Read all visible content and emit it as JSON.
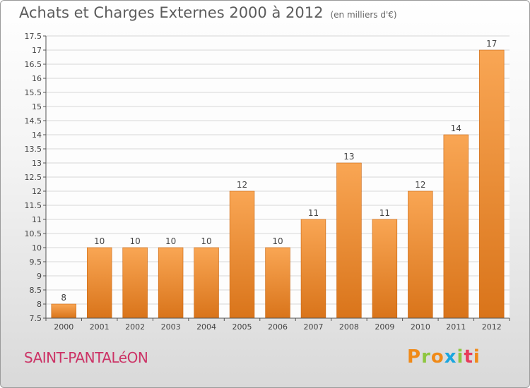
{
  "header": {
    "title": "Achats et Charges Externes 2000 à 2012",
    "unit": "(en milliers d'€)"
  },
  "footer": {
    "town": "SAINT-PANTALéON",
    "logo": {
      "text": "Proxiti",
      "colors": [
        "#f08a18",
        "#8dc63f",
        "#f08a18",
        "#1aa6df",
        "#8dc63f",
        "#e73b5a",
        "#f08a18"
      ]
    }
  },
  "chart_data": {
    "type": "bar",
    "title": "Achats et Charges Externes 2000 à 2012",
    "subtitle": "(en milliers d'€)",
    "categories": [
      "2000",
      "2001",
      "2002",
      "2003",
      "2004",
      "2005",
      "2006",
      "2007",
      "2008",
      "2009",
      "2010",
      "2011",
      "2012"
    ],
    "values": [
      8,
      10,
      10,
      10,
      10,
      12,
      10,
      11,
      13,
      11,
      12,
      14,
      17
    ],
    "value_labels": [
      "8",
      "10",
      "10",
      "10",
      "10",
      "12",
      "10",
      "11",
      "13",
      "11",
      "12",
      "14",
      "17"
    ],
    "ylim": [
      7.5,
      17.5
    ],
    "yticks": [
      7.5,
      8,
      8.5,
      9,
      9.5,
      10,
      10.5,
      11,
      11.5,
      12,
      12.5,
      13,
      13.5,
      14,
      14.5,
      15,
      15.5,
      16,
      16.5,
      17,
      17.5
    ],
    "grid": true,
    "colors": {
      "bar_light": "#f9a654",
      "bar_dark": "#d9741a",
      "grid": "#d6d6d6",
      "plot_bg": "#fdfdfd"
    }
  }
}
